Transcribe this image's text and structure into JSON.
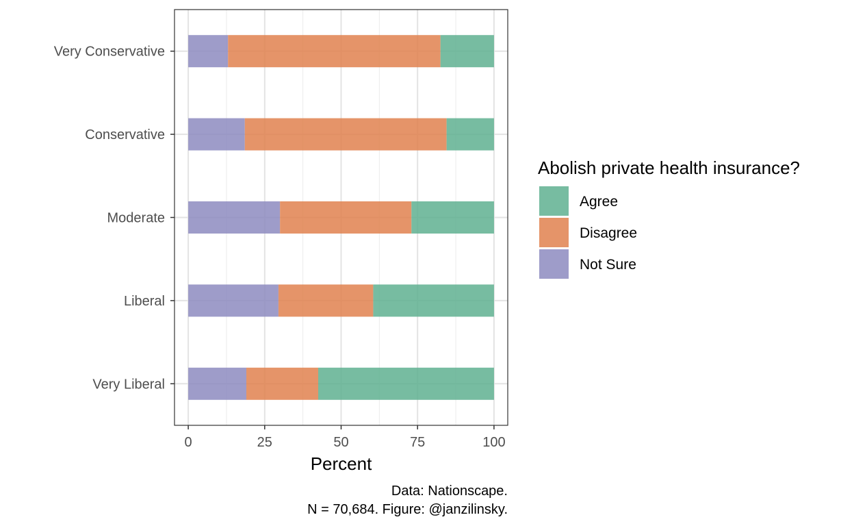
{
  "chart_data": {
    "type": "bar",
    "orientation": "horizontal",
    "stacked": true,
    "categories": [
      "Very Conservative",
      "Conservative",
      "Moderate",
      "Liberal",
      "Very Liberal"
    ],
    "series": [
      {
        "name": "Not Sure",
        "color": "#8d8bbf",
        "values": [
          13,
          18.5,
          30,
          29.5,
          19
        ]
      },
      {
        "name": "Disagree",
        "color": "#e0814f",
        "values": [
          69.5,
          66,
          43,
          31,
          23.5
        ]
      },
      {
        "name": "Agree",
        "color": "#5fb090",
        "values": [
          17.5,
          15.5,
          27,
          39.5,
          57.5
        ]
      }
    ],
    "xlabel": "Percent",
    "ylabel": "",
    "xlim": [
      -4.5,
      104.5
    ],
    "xticks": [
      "0",
      "25",
      "50",
      "75",
      "100"
    ],
    "xtick_values": [
      0,
      25,
      50,
      75,
      100
    ],
    "grid": true,
    "legend": {
      "title": "Abolish private health insurance?",
      "placement": "right",
      "items": [
        "Agree",
        "Disagree",
        "Not Sure"
      ]
    },
    "caption": [
      "Data: Nationscape.",
      "N = 70,684. Figure: @janzilinsky."
    ]
  }
}
